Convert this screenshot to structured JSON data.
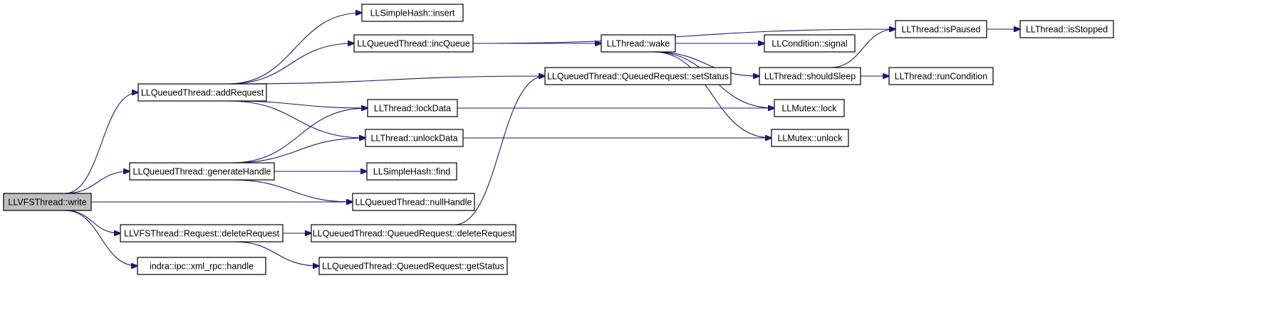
{
  "colors": {
    "edge": "#191970",
    "root_fill": "#bfbfbf",
    "node_fill": "#ffffff"
  },
  "nodes": [
    {
      "id": "write",
      "label": "LLVFSThread::write"
    },
    {
      "id": "addRequest",
      "label": "LLQueuedThread::addRequest"
    },
    {
      "id": "generateHandle",
      "label": "LLQueuedThread::generateHandle"
    },
    {
      "id": "deleteRequestVFS",
      "label": "LLVFSThread::Request::deleteRequest"
    },
    {
      "id": "handle",
      "label": "indra::ipc::xml_rpc::handle"
    },
    {
      "id": "insert",
      "label": "LLSimpleHash::insert"
    },
    {
      "id": "incQueue",
      "label": "LLQueuedThread::incQueue"
    },
    {
      "id": "lockData",
      "label": "LLThread::lockData"
    },
    {
      "id": "unlockData",
      "label": "LLThread::unlockData"
    },
    {
      "id": "find",
      "label": "LLSimpleHash::find"
    },
    {
      "id": "nullHandle",
      "label": "LLQueuedThread::nullHandle"
    },
    {
      "id": "qrDeleteRequest",
      "label": "LLQueuedThread::QueuedRequest::deleteRequest"
    },
    {
      "id": "getStatus",
      "label": "LLQueuedThread::QueuedRequest::getStatus"
    },
    {
      "id": "wake",
      "label": "LLThread::wake"
    },
    {
      "id": "setStatus",
      "label": "LLQueuedThread::QueuedRequest::setStatus"
    },
    {
      "id": "signal",
      "label": "LLCondition::signal"
    },
    {
      "id": "shouldSleep",
      "label": "LLThread::shouldSleep"
    },
    {
      "id": "lock",
      "label": "LLMutex::lock"
    },
    {
      "id": "unlock",
      "label": "LLMutex::unlock"
    },
    {
      "id": "isPaused",
      "label": "LLThread::isPaused"
    },
    {
      "id": "isStopped",
      "label": "LLThread::isStopped"
    },
    {
      "id": "runCondition",
      "label": "LLThread::runCondition"
    }
  ],
  "edges": [
    [
      "write",
      "addRequest"
    ],
    [
      "write",
      "generateHandle"
    ],
    [
      "write",
      "nullHandle"
    ],
    [
      "write",
      "deleteRequestVFS"
    ],
    [
      "write",
      "handle"
    ],
    [
      "addRequest",
      "insert"
    ],
    [
      "addRequest",
      "incQueue"
    ],
    [
      "addRequest",
      "setStatus"
    ],
    [
      "addRequest",
      "lockData"
    ],
    [
      "addRequest",
      "unlockData"
    ],
    [
      "generateHandle",
      "lockData"
    ],
    [
      "generateHandle",
      "unlockData"
    ],
    [
      "generateHandle",
      "find"
    ],
    [
      "generateHandle",
      "nullHandle"
    ],
    [
      "deleteRequestVFS",
      "qrDeleteRequest"
    ],
    [
      "deleteRequestVFS",
      "getStatus"
    ],
    [
      "qrDeleteRequest",
      "setStatus"
    ],
    [
      "incQueue",
      "wake"
    ],
    [
      "incQueue",
      "isPaused"
    ],
    [
      "wake",
      "signal"
    ],
    [
      "wake",
      "shouldSleep"
    ],
    [
      "wake",
      "lock"
    ],
    [
      "wake",
      "unlock"
    ],
    [
      "lockData",
      "lock"
    ],
    [
      "unlockData",
      "unlock"
    ],
    [
      "shouldSleep",
      "isPaused"
    ],
    [
      "shouldSleep",
      "runCondition"
    ],
    [
      "isPaused",
      "isStopped"
    ]
  ]
}
